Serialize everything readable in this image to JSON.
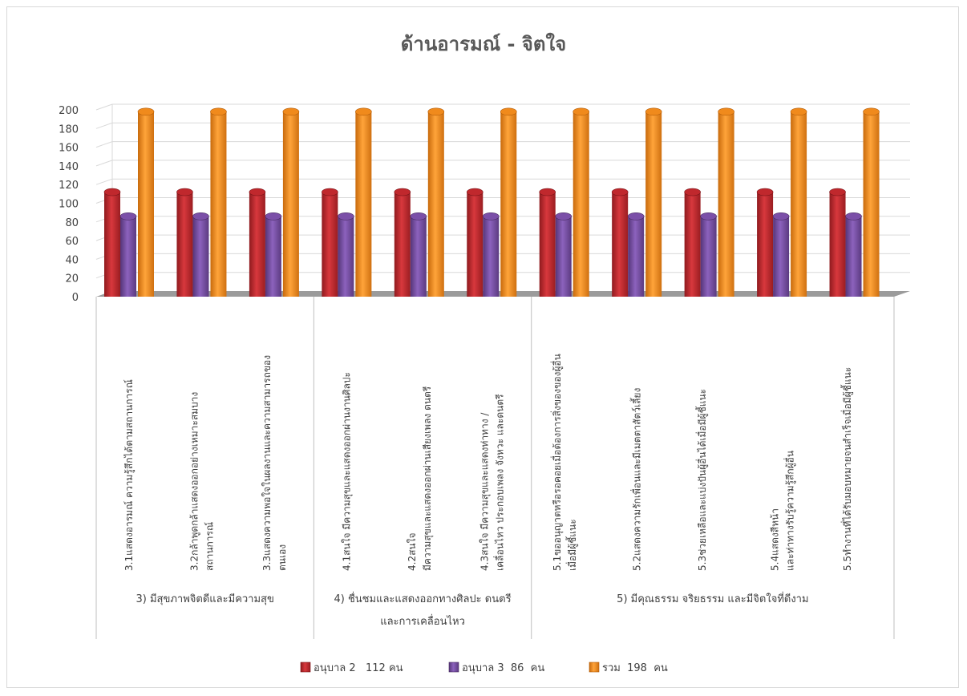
{
  "chart_data": {
    "type": "bar",
    "title": "ด้านอารมณ์ - จิตใจ",
    "ylim": [
      0,
      200
    ],
    "yticks": [
      0,
      20,
      40,
      60,
      80,
      100,
      120,
      140,
      160,
      180,
      200
    ],
    "grid": true,
    "legend_position": "bottom",
    "groups": [
      {
        "label": "3) มีสุขภาพจิตดีและมีความสุข",
        "count": 3
      },
      {
        "label": "4) ชื่นชมและแสดงออกทางศิลปะ ดนตรี และการเคลื่อนไหว",
        "count": 3
      },
      {
        "label": "5) มีคุณธรรม จริยธรรม และมีจิตใจที่ดีงาม",
        "count": 5
      }
    ],
    "categories": [
      "3.1แสดงอารมณ์ ความรู้สึกได้ตามสถานการณ์",
      "3.2กล้าพูดกล้าแสดงออกอย่างเหมาะสมบาง สถานการณ์",
      "3.3แสดงความพอใจในผลงานและความสามารถของ ตนเอง",
      "4.1สนใจ มีความสุขและแสดงออกผ่านงานศิลปะ",
      "4.2สนใจ มีความสุขและแสดงออกผ่านเสียงเพลง ดนตรี",
      "4.3สนใจ มีความสุขและแสดงท่าทาง / เคลื่อนไหว ประกอบเพลง จังหวะ และดนตรี",
      "5.1ขออนุญาตหรือรอคอยเมื่อต้องการสิ่งของของผู้อื่น เมื่อมีผู้ชี้แนะ",
      "5.2แสดงความรักเพื่อนและมีเมตตาสัตว์เลี้ยง",
      "5.3ช่วยเหลือและแบ่งปันผู้อื่นได้เมื่อมีผู้ชี้แนะ",
      "5.4แสดงสีหน้า และท่าทางรับรู้ความรู้สึกผู้อื่น",
      "5.5ทำงานที่ได้รับมอบหมายจนสำเร็จเมื่อมีผู้ชี้แนะ"
    ],
    "series": [
      {
        "name": "อนุบาล 2   112 คน",
        "color": "#c0282d",
        "values": [
          112,
          112,
          112,
          112,
          112,
          112,
          112,
          112,
          112,
          112,
          112
        ]
      },
      {
        "name": "อนุบาล 3  86  คน",
        "color": "#7b4fa8",
        "values": [
          86,
          86,
          86,
          86,
          86,
          86,
          86,
          86,
          86,
          86,
          86
        ]
      },
      {
        "name": "รวม  198  คน",
        "color": "#f08a1c",
        "values": [
          198,
          198,
          198,
          198,
          198,
          198,
          198,
          198,
          198,
          198,
          198
        ]
      }
    ]
  }
}
